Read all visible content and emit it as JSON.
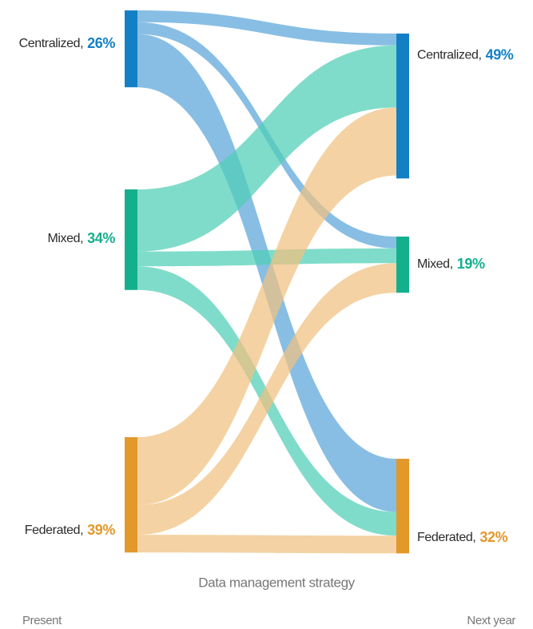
{
  "chart_data": {
    "type": "sankey",
    "title": "Data management strategy",
    "left_label": "Present",
    "right_label": "Next year",
    "left_nodes": [
      {
        "name": "Centralized,",
        "value": 26,
        "value_label": "26%",
        "color": "#1380c6",
        "link_color": "#5aa5d9"
      },
      {
        "name": "Mixed,",
        "value": 34,
        "value_label": "34%",
        "color": "#14b08e",
        "link_color": "#4fcfb5"
      },
      {
        "name": "Federated,",
        "value": 39,
        "value_label": "39%",
        "color": "#e3982a",
        "link_color": "#f0c17f"
      }
    ],
    "right_nodes": [
      {
        "name": "Centralized,",
        "value": 49,
        "value_label": "49%",
        "color": "#1380c6"
      },
      {
        "name": "Mixed,",
        "value": 19,
        "value_label": "19%",
        "color": "#14b08e"
      },
      {
        "name": "Federated,",
        "value": 32,
        "value_label": "32%",
        "color": "#e3982a"
      }
    ],
    "links": [
      {
        "source": 0,
        "target": 0,
        "value": 4
      },
      {
        "source": 0,
        "target": 1,
        "value": 4
      },
      {
        "source": 0,
        "target": 2,
        "value": 18
      },
      {
        "source": 1,
        "target": 0,
        "value": 21
      },
      {
        "source": 1,
        "target": 1,
        "value": 5
      },
      {
        "source": 1,
        "target": 2,
        "value": 8
      },
      {
        "source": 2,
        "target": 0,
        "value": 23
      },
      {
        "source": 2,
        "target": 1,
        "value": 10
      },
      {
        "source": 2,
        "target": 2,
        "value": 6
      }
    ]
  }
}
